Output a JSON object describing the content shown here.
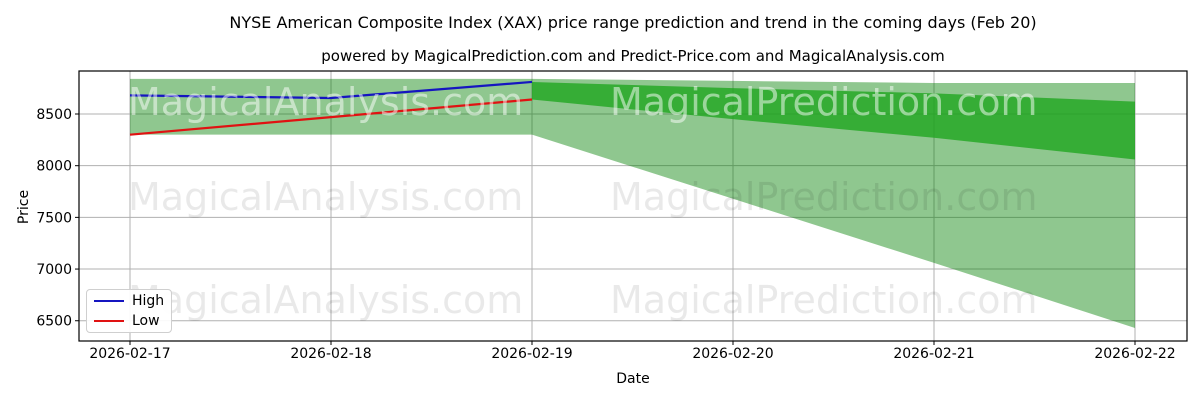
{
  "header": {
    "title": "NYSE American Composite Index (XAX) price range prediction and trend in the coming days (Feb 20)",
    "subtitle": "powered by MagicalPrediction.com and Predict-Price.com and MagicalAnalysis.com"
  },
  "watermarks": {
    "left": "MagicalAnalysis.com",
    "right": "MagicalPrediction.com"
  },
  "legend": {
    "items": [
      {
        "label": "High",
        "color": "#1515c0"
      },
      {
        "label": "Low",
        "color": "#e01212"
      }
    ]
  },
  "chart_data": {
    "type": "area",
    "title": "NYSE American Composite Index (XAX) price range prediction and trend in the coming days (Feb 20)",
    "subtitle": "powered by MagicalPrediction.com and Predict-Price.com and MagicalAnalysis.com",
    "xlabel": "Date",
    "ylabel": "Price",
    "x_tick_labels": [
      "2026-02-17",
      "2026-02-18",
      "2026-02-19",
      "2026-02-20",
      "2026-02-21",
      "2026-02-22"
    ],
    "y_tick_values": [
      6500,
      7000,
      7500,
      8000,
      8500
    ],
    "ylim": [
      6304,
      8916
    ],
    "grid": true,
    "legend_position": "lower-left",
    "grid_color": "#b0b0b0",
    "series": [
      {
        "name": "High",
        "color": "#1515c0",
        "x": [
          0,
          1,
          2
        ],
        "values": [
          8680,
          8655,
          8810
        ]
      },
      {
        "name": "Low",
        "color": "#e01212",
        "x": [
          0,
          1,
          2
        ],
        "values": [
          8300,
          8470,
          8640
        ]
      }
    ],
    "bands": [
      {
        "name": "historical-range",
        "color": "rgba(0,128,0,0.44)",
        "x": [
          0,
          1,
          2
        ],
        "top": [
          8840,
          8840,
          8840
        ],
        "bottom": [
          8300,
          8300,
          8300
        ]
      },
      {
        "name": "forecast-outer-range",
        "color": "rgba(0,128,0,0.44)",
        "x": [
          2,
          3,
          4,
          5
        ],
        "top": [
          8840,
          8820,
          8800,
          8800
        ],
        "bottom": [
          8300,
          7680,
          7060,
          6430
        ]
      },
      {
        "name": "forecast-inner-range",
        "color": "rgba(30,165,30,0.78)",
        "x": [
          2,
          3,
          4,
          5
        ],
        "top": [
          8810,
          8750,
          8700,
          8620
        ],
        "bottom": [
          8640,
          8450,
          8270,
          8060
        ]
      }
    ]
  }
}
